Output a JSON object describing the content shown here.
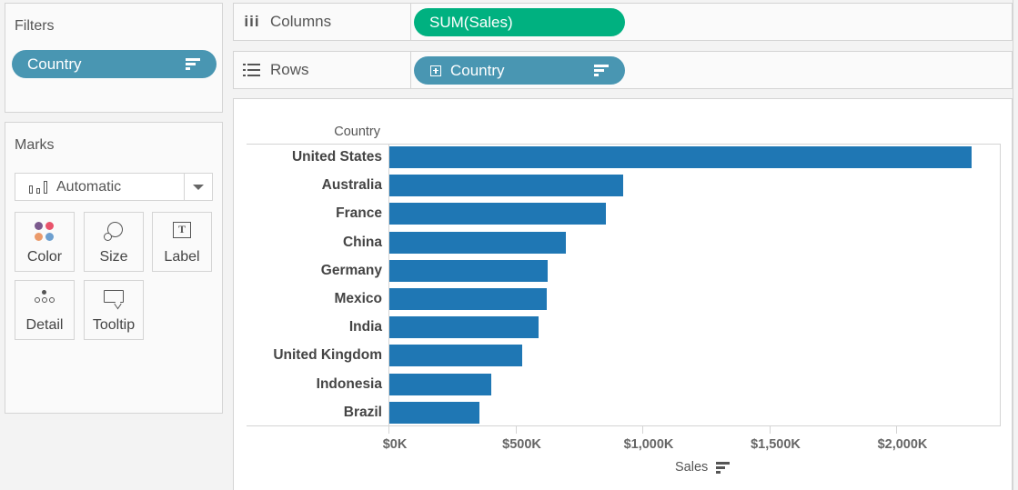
{
  "filters": {
    "title": "Filters",
    "pills": [
      {
        "label": "Country",
        "icon": "sort-descending-icon"
      }
    ]
  },
  "marks": {
    "title": "Marks",
    "mark_type": {
      "selected": "Automatic",
      "icon": "bar-chart-icon"
    },
    "buttons": [
      {
        "label": "Color",
        "icon": "color-palette-icon"
      },
      {
        "label": "Size",
        "icon": "size-icon"
      },
      {
        "label": "Label",
        "icon": "text-label-icon"
      },
      {
        "label": "Detail",
        "icon": "detail-icon"
      },
      {
        "label": "Tooltip",
        "icon": "tooltip-icon"
      }
    ]
  },
  "shelves": {
    "columns": {
      "label": "Columns",
      "icon": "columns-icon",
      "pill": {
        "label": "SUM(Sales)",
        "color": "#00b180"
      }
    },
    "rows": {
      "label": "Rows",
      "icon": "rows-icon",
      "pill": {
        "label": "Country",
        "color": "#4996b2",
        "expand_icon": "plus-box-icon",
        "sort_icon": "sort-descending-icon"
      }
    }
  },
  "chart": {
    "row_header": "Country",
    "axis_title": "Sales",
    "axis_sort_icon": "sort-descending-icon",
    "bar_color": "#1f77b4"
  },
  "chart_data": {
    "type": "bar",
    "orientation": "horizontal",
    "title": "",
    "xlabel": "Sales",
    "ylabel": "Country",
    "categories": [
      "United States",
      "Australia",
      "France",
      "China",
      "Germany",
      "Mexico",
      "India",
      "United Kingdom",
      "Indonesia",
      "Brazil"
    ],
    "values": [
      2294,
      921,
      853,
      695,
      624,
      620,
      588,
      523,
      401,
      355
    ],
    "units": "$K",
    "x_ticks": [
      "$0K",
      "$500K",
      "$1,000K",
      "$1,500K",
      "$2,000K"
    ],
    "x_tick_values": [
      0,
      500,
      1000,
      1500,
      2000
    ],
    "xlim": [
      0,
      2350
    ],
    "grid": false,
    "legend": null,
    "sorted": "descending"
  }
}
